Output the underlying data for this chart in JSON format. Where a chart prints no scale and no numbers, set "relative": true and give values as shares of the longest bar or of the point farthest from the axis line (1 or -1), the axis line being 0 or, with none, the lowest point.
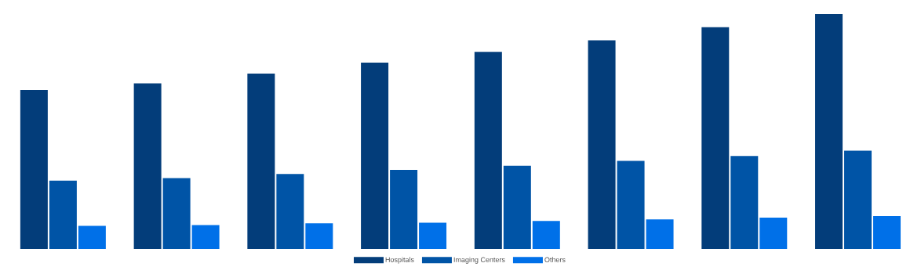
{
  "chart_data": {
    "type": "bar",
    "relative": true,
    "categories": [
      null,
      null,
      null,
      null,
      null,
      null,
      null,
      null
    ],
    "series": [
      {
        "name": "Hospitals",
        "color": "#033d7a",
        "values": [
          0.677,
          0.705,
          0.747,
          0.793,
          0.839,
          0.888,
          0.944,
          1
        ]
      },
      {
        "name": "Imaging Centers",
        "color": "#0054a6",
        "values": [
          0.291,
          0.302,
          0.319,
          0.337,
          0.354,
          0.375,
          0.396,
          0.418
        ]
      },
      {
        "name": "Others",
        "color": "#0070e8",
        "values": [
          0.098,
          0.102,
          0.109,
          0.112,
          0.119,
          0.126,
          0.133,
          0.14
        ]
      }
    ],
    "legend": "bottom"
  }
}
